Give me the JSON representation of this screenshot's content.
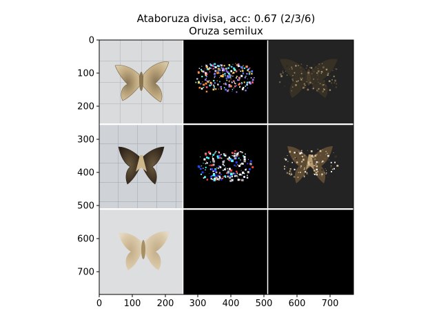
{
  "figure": {
    "title_line1": "Ataboruza divisa, acc: 0.67 (2/3/6)",
    "title_line2": "Oruza semilux"
  },
  "axes": {
    "x_ticks": [
      "0",
      "100",
      "200",
      "300",
      "400",
      "500",
      "600",
      "700"
    ],
    "y_ticks": [
      "0",
      "100",
      "200",
      "300",
      "400",
      "500",
      "600",
      "700"
    ]
  },
  "panels": [
    {
      "row": 0,
      "col": 0,
      "kind": "photo",
      "content": "moth specimen on grid background"
    },
    {
      "row": 0,
      "col": 1,
      "kind": "saliency",
      "content": "colored speckled attribution map"
    },
    {
      "row": 0,
      "col": 2,
      "kind": "masked",
      "content": "dark masked moth"
    },
    {
      "row": 1,
      "col": 0,
      "kind": "photo",
      "content": "dark moth specimen on grid background"
    },
    {
      "row": 1,
      "col": 1,
      "kind": "saliency",
      "content": "white speckled attribution map"
    },
    {
      "row": 1,
      "col": 2,
      "kind": "masked",
      "content": "dark masked moth"
    },
    {
      "row": 2,
      "col": 0,
      "kind": "photo",
      "content": "pale moth specimen"
    },
    {
      "row": 2,
      "col": 1,
      "kind": "blank",
      "content": ""
    },
    {
      "row": 2,
      "col": 2,
      "kind": "blank",
      "content": ""
    }
  ],
  "colors": {
    "photo_bg": "#d8dadc",
    "grid_line": "#aeb2b6",
    "moth_light": "#b8a27a",
    "moth_dark": "#4a3a26",
    "saliency_bg": "#000000",
    "masked_bg": "#222222"
  }
}
